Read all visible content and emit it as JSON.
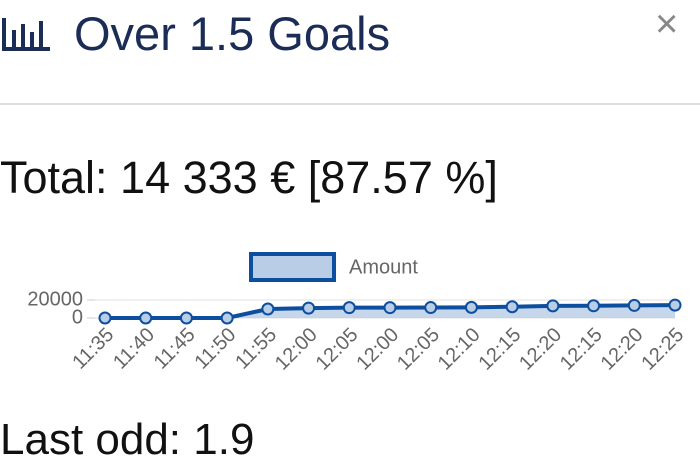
{
  "header": {
    "title": "Over 1.5 Goals",
    "close": "×"
  },
  "total": "Total: 14 333 € [87.57 %]",
  "chart_data": {
    "type": "line",
    "categories": [
      "11:35",
      "11:40",
      "11:45",
      "11:50",
      "11:55",
      "12:00",
      "12:05",
      "12:00",
      "12:05",
      "12:10",
      "12:15",
      "12:20",
      "12:15",
      "12:20",
      "12:25"
    ],
    "series": [
      {
        "name": "Amount",
        "color": "#0d4f9e",
        "fill_color": "#b9cde6",
        "values": [
          0,
          0,
          0,
          0,
          10000,
          11000,
          11500,
          11500,
          11600,
          11800,
          12500,
          13500,
          13600,
          14000,
          14333
        ]
      }
    ],
    "ylim": [
      0,
      20000
    ],
    "yticks": [
      0,
      20000
    ],
    "grid": true
  },
  "last_odd": "Last odd: 1.9"
}
